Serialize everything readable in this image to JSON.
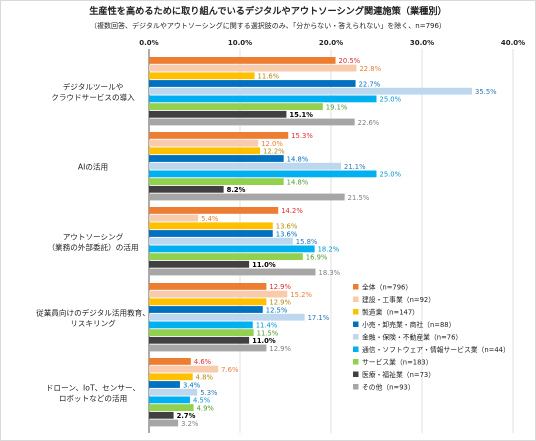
{
  "chart_data": {
    "type": "bar",
    "orientation": "horizontal",
    "title": "生産性を高めるために取り組んでいるデジタルやアウトソーシング関連施策（業種別）",
    "subtitle": "（複数回答、デジタルやアウトソーシングに関する選択肢のみ、「分からない・答えられない」を除く、n=796）",
    "xlim": [
      0,
      40
    ],
    "ticks": [
      "0.0%",
      "10.0%",
      "20.0%",
      "30.0%",
      "40.0%"
    ],
    "tick_values": [
      0,
      10,
      20,
      30,
      40
    ],
    "grid": true,
    "legend_position": "right",
    "categories": [
      [
        "デジタルツールや",
        "クラウドサービスの導入"
      ],
      [
        "AIの活用"
      ],
      [
        "アウトソーシング",
        "（業務の外部委託）の活用"
      ],
      [
        "従業員向けのデジタル活用教育、",
        "リスキリング"
      ],
      [
        "ドローン、IoT、センサー、",
        "ロボットなどの活用"
      ]
    ],
    "series": [
      {
        "name": "全体（n=796）",
        "color": "#ed7d31",
        "label_color": "#e0302c",
        "values": [
          20.5,
          15.3,
          14.2,
          12.9,
          4.6
        ],
        "labels": [
          "20.5%",
          "15.3%",
          "14.2%",
          "12.9%",
          "4.6%"
        ]
      },
      {
        "name": "建設・工事業（n=92）",
        "color": "#f8cbad",
        "label_color": "#ed7d31",
        "values": [
          22.8,
          12.0,
          5.4,
          15.2,
          7.6
        ],
        "labels": [
          "22.8%",
          "12.0%",
          "5.4%",
          "15.2%",
          "7.6%"
        ]
      },
      {
        "name": "製造業（n=147）",
        "color": "#ffc000",
        "label_color": "#b8860b",
        "values": [
          11.6,
          12.2,
          13.6,
          12.9,
          4.8
        ],
        "labels": [
          "11.6%",
          "12.2%",
          "13.6%",
          "12.9%",
          "4.8%"
        ]
      },
      {
        "name": "小売・卸売業・商社（n=88）",
        "color": "#0070c0",
        "label_color": "#0070c0",
        "values": [
          22.7,
          14.8,
          13.6,
          12.5,
          3.4
        ],
        "labels": [
          "22.7%",
          "14.8%",
          "13.6%",
          "12.5%",
          "3.4%"
        ]
      },
      {
        "name": "金融・保険・不動産業（n=76）",
        "color": "#bdd7ee",
        "label_color": "#2e75b6",
        "values": [
          35.5,
          21.1,
          15.8,
          17.1,
          5.3
        ],
        "labels": [
          "35.5%",
          "21.1%",
          "15.8%",
          "17.1%",
          "5.3%"
        ]
      },
      {
        "name": "通信・ソフトウェア・情報サービス業（n=44）",
        "color": "#00b0f0",
        "label_color": "#0096d6",
        "values": [
          25.0,
          25.0,
          18.2,
          11.4,
          4.5
        ],
        "labels": [
          "25.0%",
          "25.0%",
          "18.2%",
          "11.4%",
          "4.5%"
        ]
      },
      {
        "name": "サービス業（n=183）",
        "color": "#92d050",
        "label_color": "#4e9a2a",
        "values": [
          19.1,
          14.8,
          16.9,
          11.5,
          4.9
        ],
        "labels": [
          "19.1%",
          "14.8%",
          "16.9%",
          "11.5%",
          "4.9%"
        ]
      },
      {
        "name": "医療・福祉業（n=73）",
        "color": "#404040",
        "label_color": "#000000",
        "values": [
          15.1,
          8.2,
          11.0,
          11.0,
          2.7
        ],
        "labels": [
          "15.1%",
          "8.2%",
          "11.0%",
          "11.0%",
          "2.7%"
        ]
      },
      {
        "name": "その他（n=93）",
        "color": "#a6a6a6",
        "label_color": "#7f7f7f",
        "values": [
          22.6,
          21.5,
          18.3,
          12.9,
          3.2
        ],
        "labels": [
          "22.6%",
          "21.5%",
          "18.3%",
          "12.9%",
          "3.2%"
        ]
      }
    ]
  }
}
